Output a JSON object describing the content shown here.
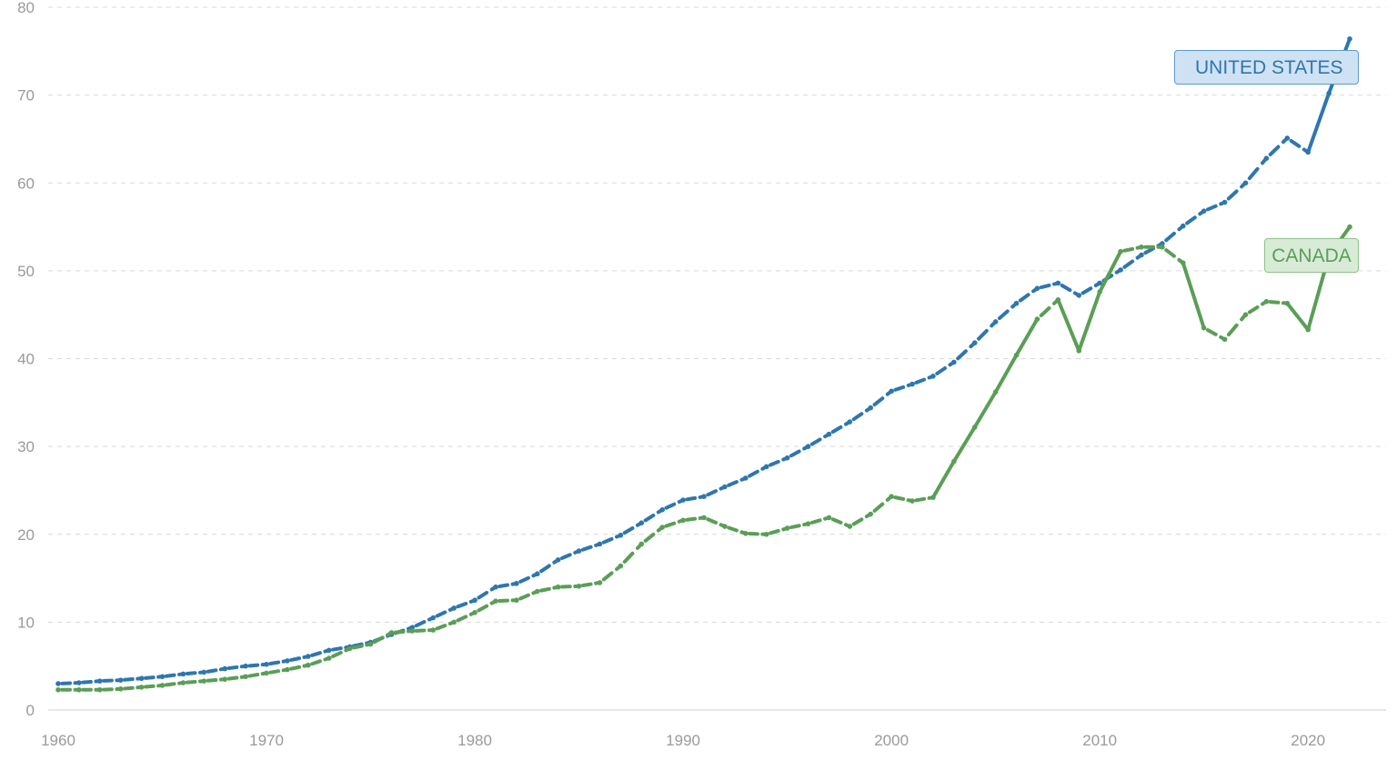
{
  "chart_data": {
    "type": "line",
    "title": "",
    "xlabel": "",
    "ylabel": "",
    "xlim": [
      1960,
      2022
    ],
    "ylim": [
      0,
      80
    ],
    "x_ticks": [
      "1960",
      "1970",
      "1980",
      "1990",
      "2000",
      "2010",
      "2020"
    ],
    "y_ticks": [
      "0",
      "10",
      "20",
      "30",
      "40",
      "50",
      "60",
      "70",
      "80"
    ],
    "grid": true,
    "x": [
      1960,
      1961,
      1962,
      1963,
      1964,
      1965,
      1966,
      1967,
      1968,
      1969,
      1970,
      1971,
      1972,
      1973,
      1974,
      1975,
      1976,
      1977,
      1978,
      1979,
      1980,
      1981,
      1982,
      1983,
      1984,
      1985,
      1986,
      1987,
      1988,
      1989,
      1990,
      1991,
      1992,
      1993,
      1994,
      1995,
      1996,
      1997,
      1998,
      1999,
      2000,
      2001,
      2002,
      2003,
      2004,
      2005,
      2006,
      2007,
      2008,
      2009,
      2010,
      2011,
      2012,
      2013,
      2014,
      2015,
      2016,
      2017,
      2018,
      2019,
      2020,
      2021,
      2022
    ],
    "series": [
      {
        "name": "UNITED STATES",
        "color": "#2e76b0",
        "values": [
          3.0,
          3.1,
          3.3,
          3.4,
          3.6,
          3.8,
          4.1,
          4.3,
          4.7,
          5.0,
          5.2,
          5.6,
          6.1,
          6.8,
          7.2,
          7.7,
          8.6,
          9.4,
          10.5,
          11.6,
          12.5,
          14.0,
          14.4,
          15.5,
          17.1,
          18.1,
          18.9,
          19.9,
          21.3,
          22.8,
          23.9,
          24.3,
          25.4,
          26.4,
          27.7,
          28.7,
          30.0,
          31.4,
          32.8,
          34.4,
          36.3,
          37.1,
          38.0,
          39.6,
          41.8,
          44.2,
          46.3,
          48.0,
          48.6,
          47.2,
          48.6,
          50.1,
          51.8,
          53.1,
          55.1,
          56.8,
          57.8,
          60.0,
          62.8,
          65.1,
          63.5,
          70.2,
          76.4
        ]
      },
      {
        "name": "CANADA",
        "color": "#5a9e56",
        "values": [
          2.3,
          2.3,
          2.3,
          2.4,
          2.6,
          2.8,
          3.1,
          3.3,
          3.5,
          3.8,
          4.2,
          4.6,
          5.1,
          5.9,
          7.0,
          7.5,
          8.8,
          9.0,
          9.1,
          10.0,
          11.1,
          12.4,
          12.5,
          13.5,
          14.0,
          14.1,
          14.5,
          16.4,
          18.9,
          20.8,
          21.6,
          21.9,
          20.9,
          20.1,
          20.0,
          20.7,
          21.2,
          21.9,
          20.9,
          22.3,
          24.3,
          23.8,
          24.2,
          28.3,
          32.2,
          36.2,
          40.4,
          44.5,
          46.7,
          40.9,
          47.6,
          52.2,
          52.7,
          52.7,
          50.9,
          43.5,
          42.2,
          45.0,
          46.5,
          46.3,
          43.3,
          51.7,
          55.0
        ]
      }
    ]
  }
}
